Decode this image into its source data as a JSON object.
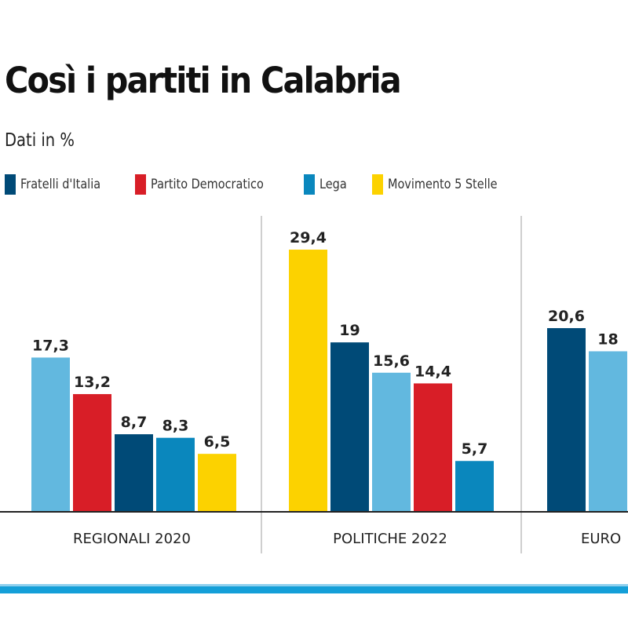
{
  "chart_data": {
    "type": "bar",
    "title": "Così i partiti in Calabria",
    "subtitle": "Dati in %",
    "legend": [
      {
        "name": "Fratelli d'Italia",
        "color": "#004a77"
      },
      {
        "name": "Partito Democratico",
        "color": "#d81e27"
      },
      {
        "name": "Lega",
        "color": "#0a87bd"
      },
      {
        "name": "Movimento 5 Stelle",
        "color": "#fcd200"
      }
    ],
    "legend_placement": "top",
    "grid": false,
    "ylim": [
      0,
      30
    ],
    "groups": [
      {
        "category": "REGIONALI 2020",
        "bars": [
          {
            "value": 17.3,
            "label": "17,3",
            "color": "#62b8df"
          },
          {
            "value": 13.2,
            "label": "13,2",
            "color": "#d81e27"
          },
          {
            "value": 8.7,
            "label": "8,7",
            "color": "#004a77"
          },
          {
            "value": 8.3,
            "label": "8,3",
            "color": "#0a87bd"
          },
          {
            "value": 6.5,
            "label": "6,5",
            "color": "#fcd200"
          }
        ]
      },
      {
        "category": "POLITICHE 2022",
        "bars": [
          {
            "value": 29.4,
            "label": "29,4",
            "color": "#fcd200"
          },
          {
            "value": 19,
            "label": "19",
            "color": "#004a77"
          },
          {
            "value": 15.6,
            "label": "15,6",
            "color": "#62b8df"
          },
          {
            "value": 14.4,
            "label": "14,4",
            "color": "#d81e27"
          },
          {
            "value": 5.7,
            "label": "5,7",
            "color": "#0a87bd"
          }
        ]
      },
      {
        "category": "EURO",
        "bars": [
          {
            "value": 20.6,
            "label": "20,6",
            "color": "#004a77"
          },
          {
            "value": 18,
            "label": "18",
            "color": "#62b8df"
          }
        ]
      }
    ],
    "accent_color": "#149fd8"
  }
}
